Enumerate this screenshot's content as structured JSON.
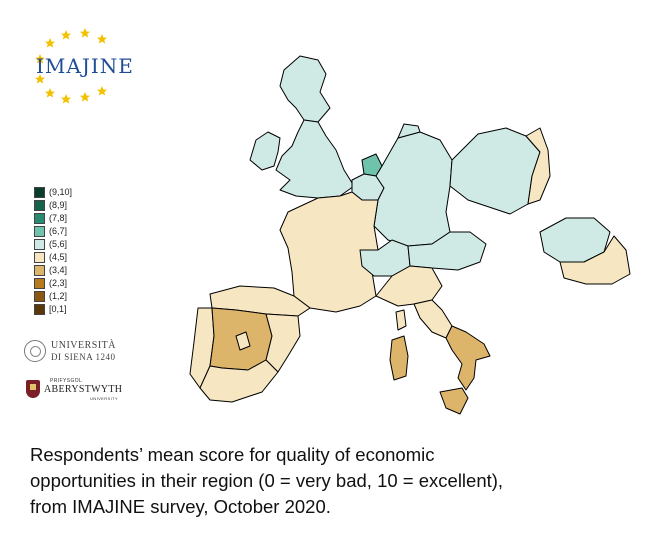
{
  "logo": {
    "text": "IMAJINE"
  },
  "legend": {
    "items": [
      {
        "label": "(9,10]",
        "color": "#0b3d2c"
      },
      {
        "label": "(8,9]",
        "color": "#15634b"
      },
      {
        "label": "(7,8]",
        "color": "#2a8a70"
      },
      {
        "label": "(6,7]",
        "color": "#6fc3ad"
      },
      {
        "label": "(5,6]",
        "color": "#cfeae4"
      },
      {
        "label": "(4,5]",
        "color": "#f7e6c2"
      },
      {
        "label": "(3,4]",
        "color": "#dcb46a"
      },
      {
        "label": "(2,3]",
        "color": "#b77a1c"
      },
      {
        "label": "(1,2]",
        "color": "#8a5812"
      },
      {
        "label": "[0,1]",
        "color": "#5a380c"
      }
    ]
  },
  "universities": {
    "siena": {
      "line1": "UNIVERSITÀ",
      "line2": "DI SIENA 1240"
    },
    "aberystwyth": {
      "small": "PRIFYSGOL",
      "name": "ABERYSTWYTH",
      "sub": "UNIVERSITY"
    }
  },
  "map": {
    "regions": [
      {
        "name": "scotland",
        "score_band": "(5,6]"
      },
      {
        "name": "england-wales",
        "score_band": "(5,6]"
      },
      {
        "name": "ireland",
        "score_band": "(5,6]"
      },
      {
        "name": "netherlands-region",
        "score_band": "(6,7]"
      },
      {
        "name": "germany",
        "score_band": "(5,6]"
      },
      {
        "name": "poland",
        "score_band": "(5,6]"
      },
      {
        "name": "romania",
        "score_band": "(5,6]"
      },
      {
        "name": "france",
        "score_band": "(4,5]"
      },
      {
        "name": "central-spain",
        "score_band": "(3,4]"
      },
      {
        "name": "southern-italy",
        "score_band": "(3,4]"
      },
      {
        "name": "sardinia",
        "score_band": "(3,4]"
      },
      {
        "name": "sicily",
        "score_band": "(3,4]"
      }
    ]
  },
  "caption": {
    "line1": "Respondents’ mean score for quality of economic",
    "line2": "opportunities in their region (0 = very bad, 10 = excellent),",
    "line3": "from IMAJINE survey, October 2020."
  }
}
